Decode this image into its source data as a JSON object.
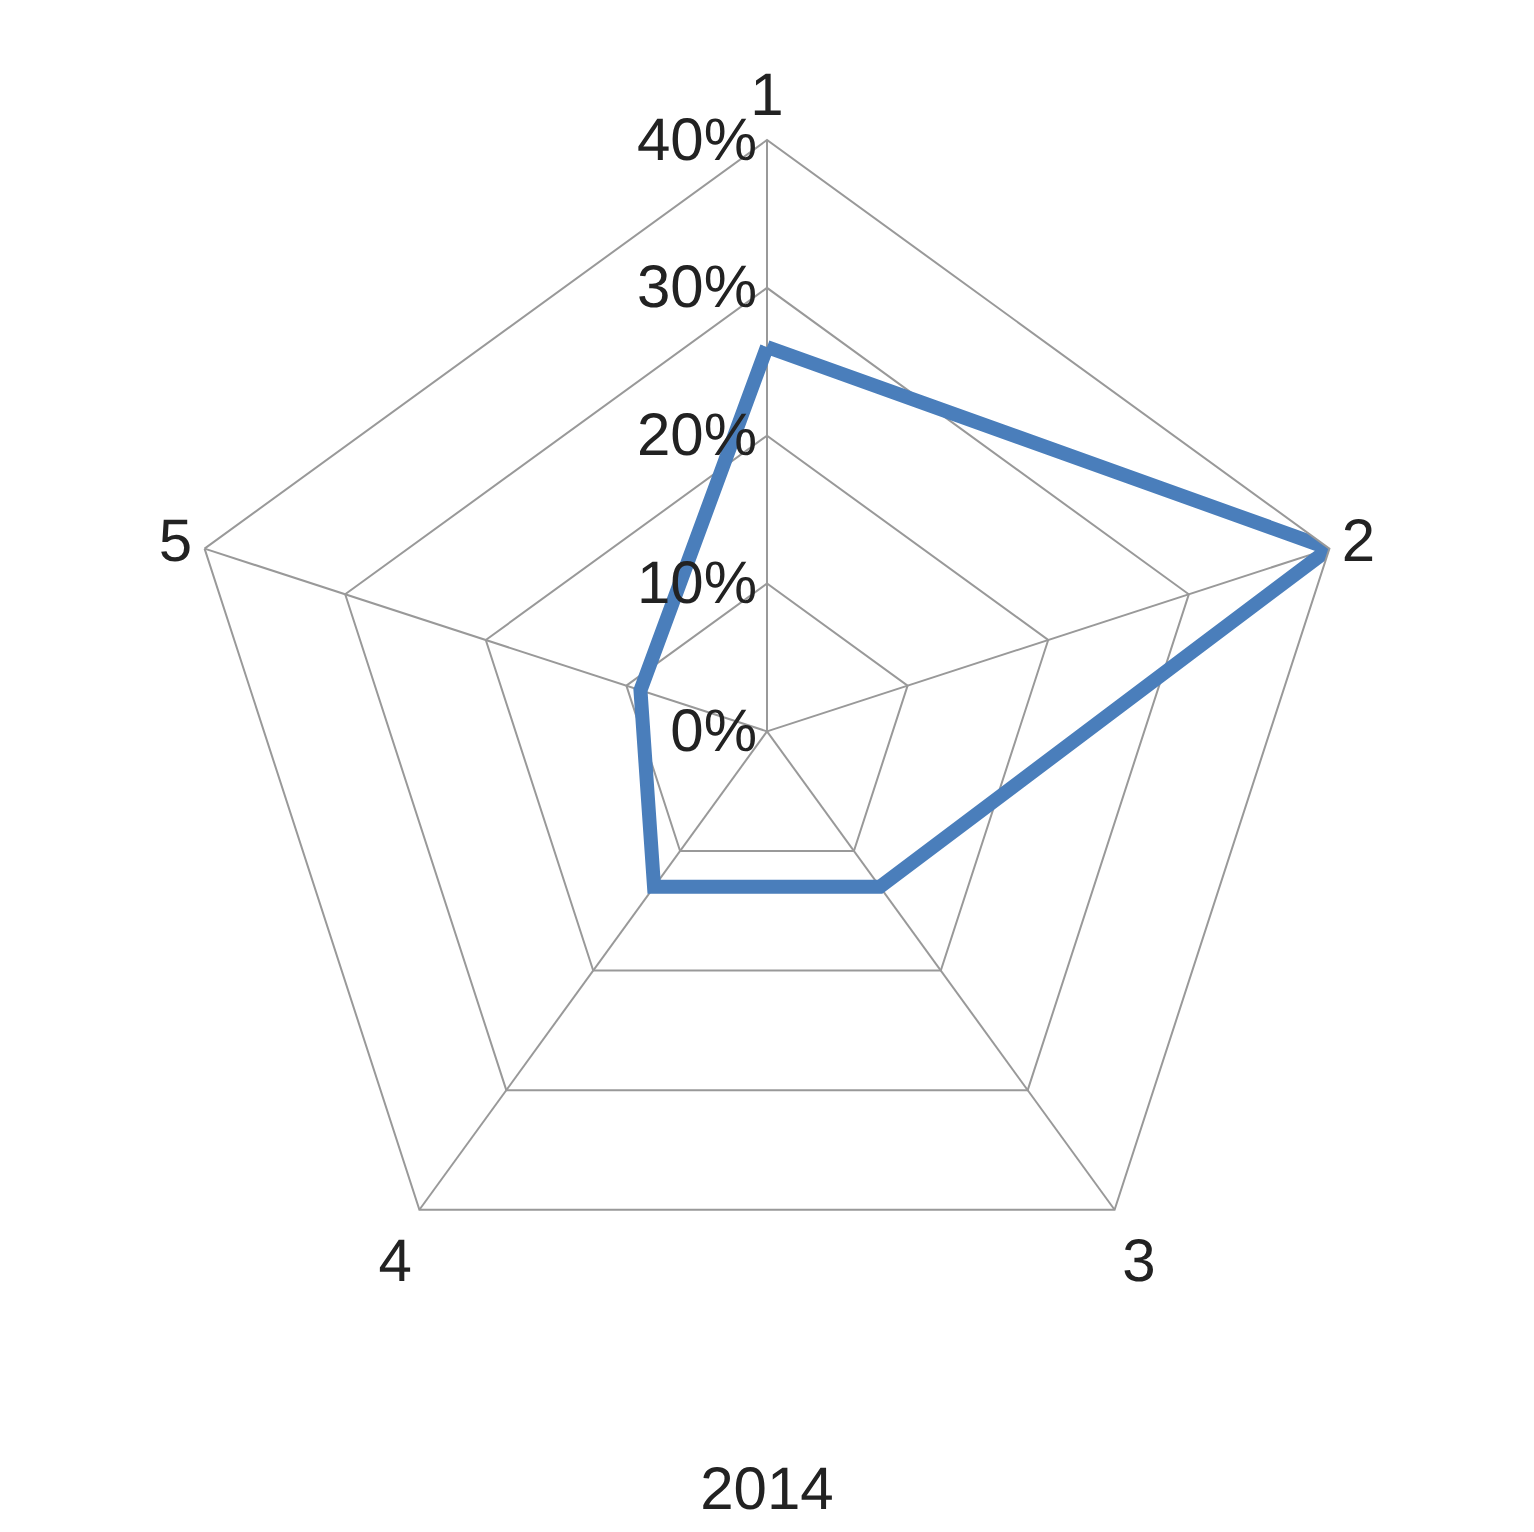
{
  "chart_data": {
    "type": "radar",
    "title": "2014",
    "categories": [
      "1",
      "2",
      "3",
      "4",
      "5"
    ],
    "series": [
      {
        "color": "#4a7ebb",
        "values": [
          26,
          40,
          13,
          13,
          9
        ]
      }
    ],
    "ylim": [
      0,
      40
    ],
    "yticks": [
      {
        "value": 0,
        "label": "0%"
      },
      {
        "value": 10,
        "label": "10%"
      },
      {
        "value": 20,
        "label": "20%"
      },
      {
        "value": 30,
        "label": "30%"
      },
      {
        "value": 40,
        "label": "40%"
      }
    ],
    "grid": true,
    "marker": "none"
  }
}
